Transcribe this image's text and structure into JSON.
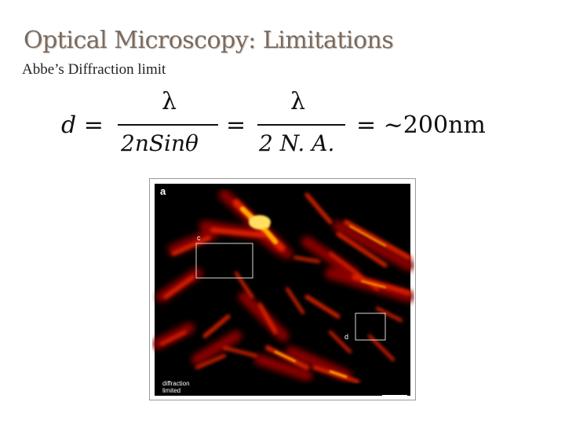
{
  "slide": {
    "title": "Optical Microscopy: Limitations",
    "subtitle": "Abbe’s Diffraction limit"
  },
  "equation": {
    "lhs": "d =",
    "frac1_num": "λ",
    "frac1_den": "2nSinθ",
    "equals2": "=",
    "frac2_num": "λ",
    "frac2_den": "2 N. A.",
    "rhs": "= ~200nm"
  },
  "micrograph": {
    "panel_letter": "a",
    "box_c_label": "c",
    "box_d_label": "d",
    "caption_line1": "diffraction",
    "caption_line2": "limited",
    "colors": {
      "background": "#000000",
      "glow_outer": "#8a0000",
      "glow_mid": "#e02000",
      "glow_core": "#ffb000",
      "box": "#d8d8d8"
    }
  }
}
